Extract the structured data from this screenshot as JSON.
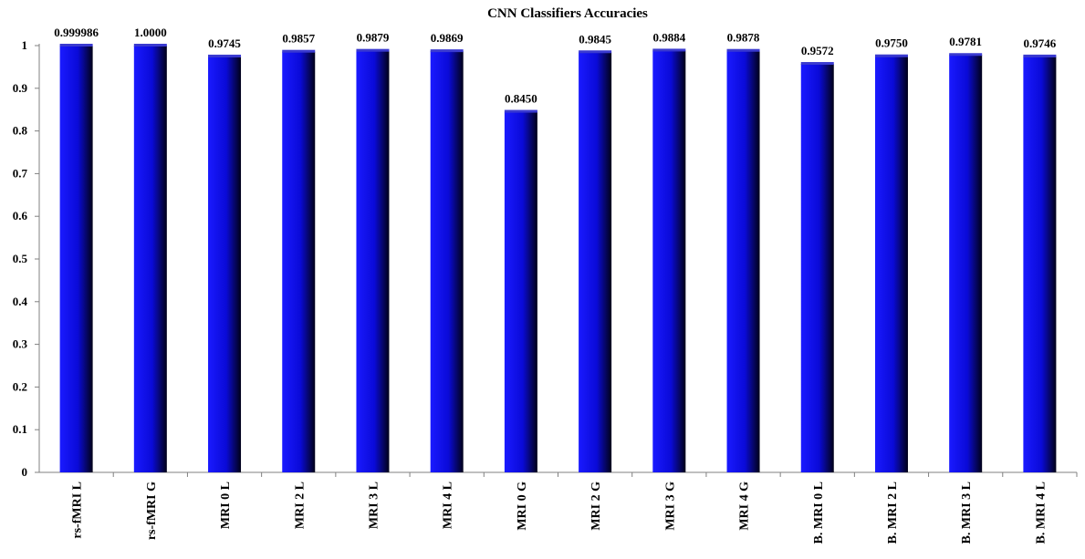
{
  "chart_data": {
    "type": "bar",
    "title": "CNN Classifiers Accuracies",
    "xlabel": "",
    "ylabel": "",
    "ylim": [
      0,
      1
    ],
    "yticks": [
      "0",
      "0.1",
      "0.2",
      "0.3",
      "0.4",
      "0.5",
      "0.6",
      "0.7",
      "0.8",
      "0.9",
      "1"
    ],
    "categories": [
      "rs-fMRI L",
      "rs-fMRI G",
      "MRI 0 L",
      "MRI 2 L",
      "MRI 3 L",
      "MRI 4 L",
      "MRI 0 G",
      "MRI 2 G",
      "MRI 3 G",
      "MRI 4 G",
      "B. MRI 0 L",
      "B. MRI 2 L",
      "B. MRI 3 L",
      "B. MRI 4 L"
    ],
    "values": [
      0.999986,
      1.0,
      0.9745,
      0.9857,
      0.9879,
      0.9869,
      0.845,
      0.9845,
      0.9884,
      0.9878,
      0.9572,
      0.975,
      0.9781,
      0.9746
    ],
    "value_labels": [
      "0.999986",
      "1.0000",
      "0.9745",
      "0.9857",
      "0.9879",
      "0.9869",
      "0.8450",
      "0.9845",
      "0.9884",
      "0.9878",
      "0.9572",
      "0.9750",
      "0.9781",
      "0.9746"
    ],
    "grid": false,
    "legend": "none",
    "bar_color": "#1010e0"
  }
}
